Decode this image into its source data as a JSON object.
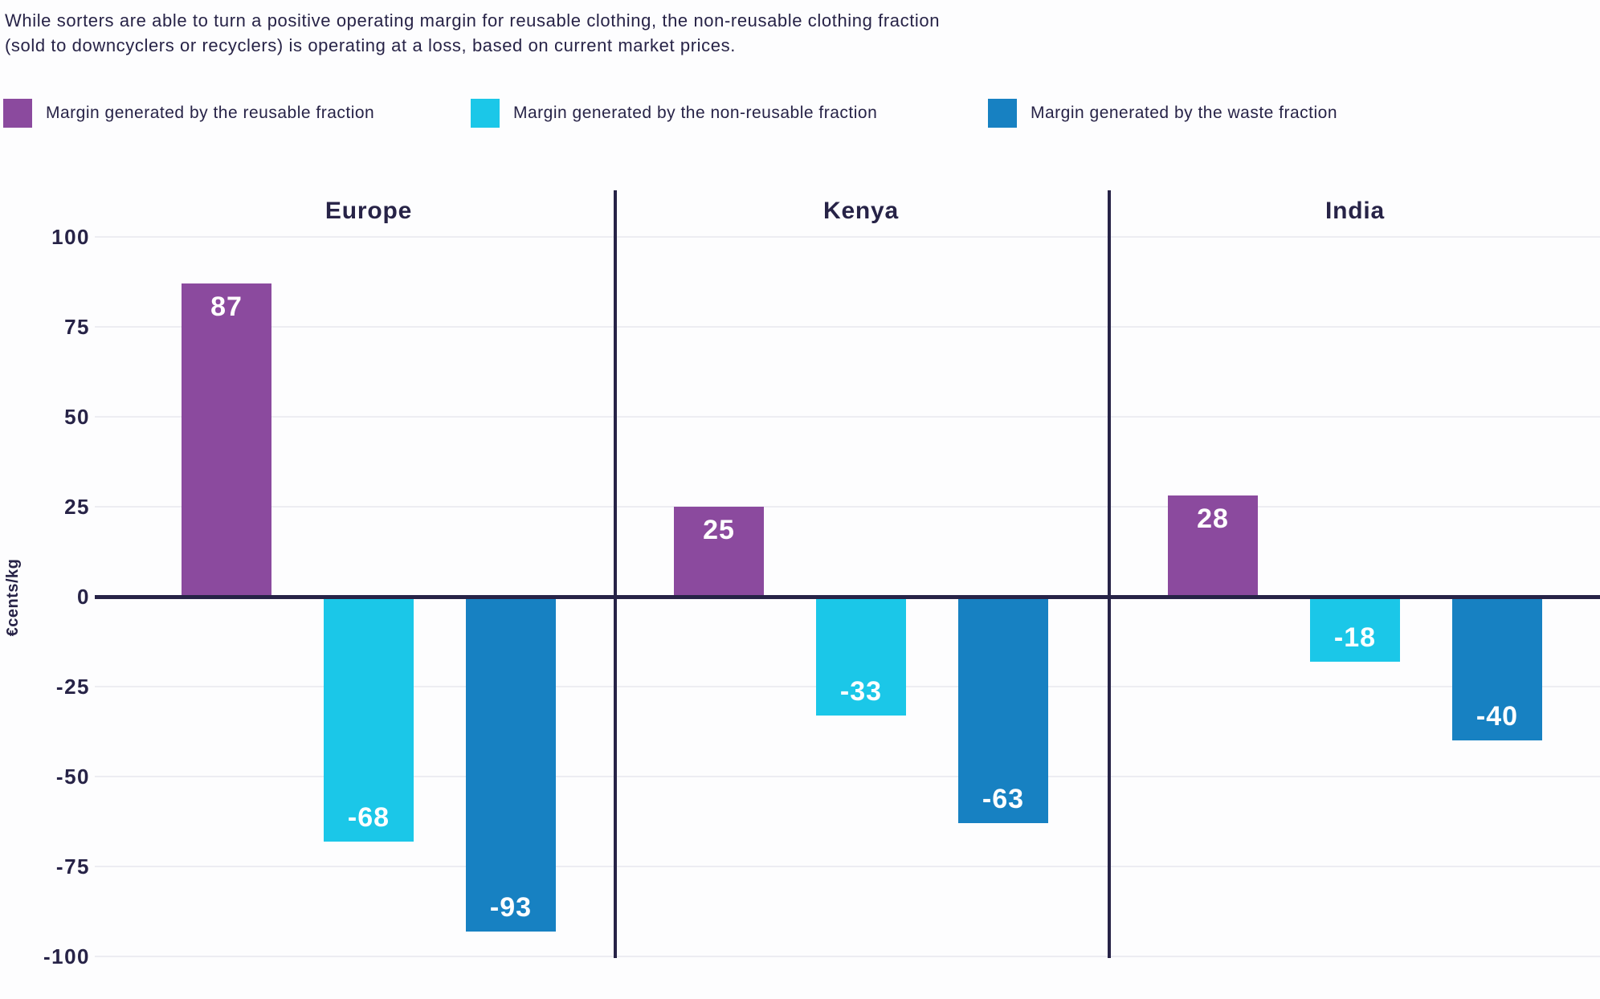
{
  "title": {
    "line1": "While sorters are able to turn a positive operating margin for reusable clothing, the non-reusable clothing fraction",
    "line2": "(sold to downcyclers or recyclers) is operating at a loss, based on current market prices."
  },
  "legend": {
    "items": [
      {
        "label": "Margin generated by the reusable fraction",
        "color": "#8b4a9e"
      },
      {
        "label": "Margin generated by the non-reusable fraction",
        "color": "#1bc7e8"
      },
      {
        "label": "Margin generated by the waste fraction",
        "color": "#1781c2"
      }
    ]
  },
  "chart_data": {
    "type": "bar",
    "title": "While sorters are able to turn a positive operating margin for reusable clothing, the non-reusable clothing fraction (sold to downcyclers or recyclers) is operating at a loss, based on current market prices.",
    "ylabel": "€cents/kg",
    "xlabel": "",
    "ylim": [
      -100,
      100
    ],
    "yticks": [
      100,
      75,
      50,
      25,
      0,
      -25,
      -50,
      -75,
      -100
    ],
    "grid": true,
    "legend_position": "top",
    "value_labels": true,
    "groups": [
      "Europe",
      "Kenya",
      "India"
    ],
    "series": [
      {
        "name": "Margin generated by the reusable fraction",
        "color": "#8b4a9e",
        "values": [
          87,
          25,
          28
        ]
      },
      {
        "name": "Margin generated by the non-reusable fraction",
        "color": "#1bc7e8",
        "values": [
          -68,
          -33,
          -18
        ]
      },
      {
        "name": "Margin generated by the waste fraction",
        "color": "#1781c2",
        "values": [
          -93,
          -63,
          -40
        ]
      }
    ],
    "colors": {
      "axis_text": "#272347",
      "zero_line": "#272347",
      "gridline": "#ededf2",
      "background": "#fdfdfe",
      "bar_label_text": "#ffffff"
    }
  }
}
